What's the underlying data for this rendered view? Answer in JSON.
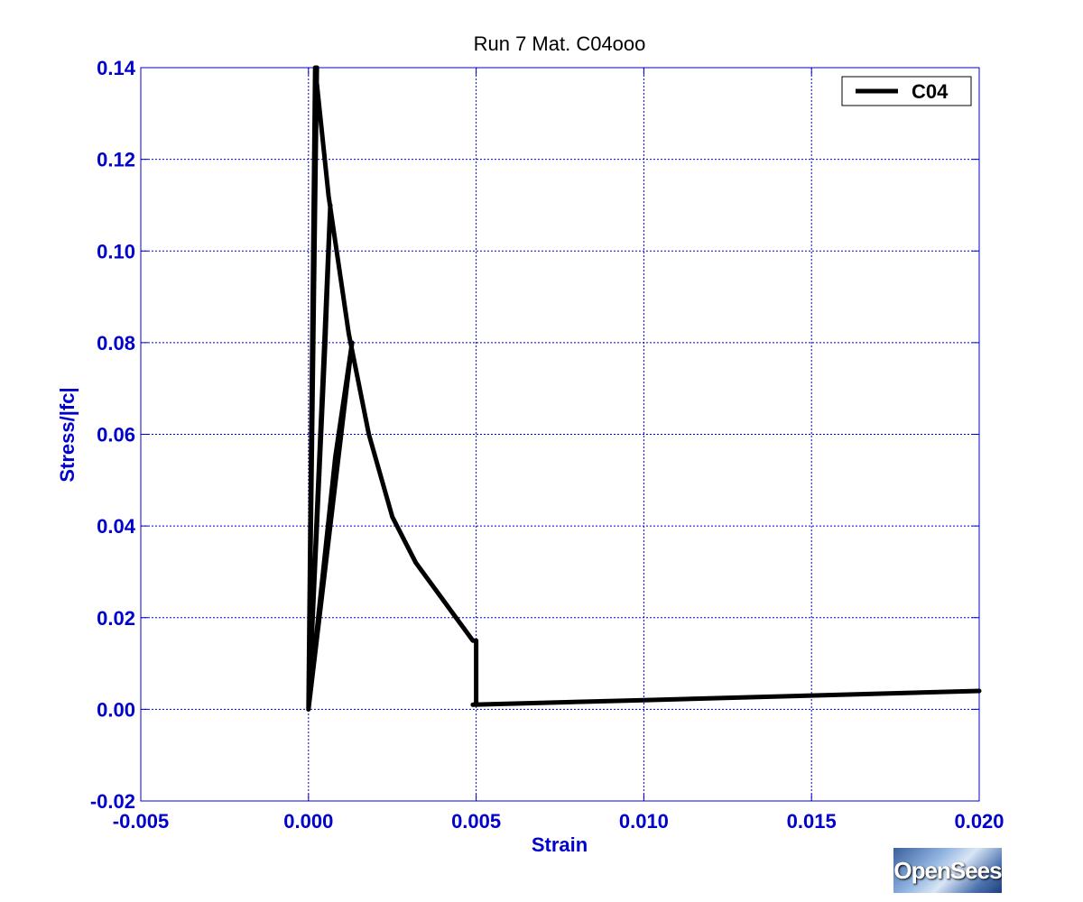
{
  "chart_data": {
    "type": "line",
    "title": "Run 7    Mat. C04ooo",
    "xlabel": "Strain",
    "ylabel": "Stress/|fc|",
    "xlim": [
      -0.005,
      0.02
    ],
    "ylim": [
      -0.02,
      0.14
    ],
    "xticks": [
      -0.005,
      0.0,
      0.005,
      0.01,
      0.015,
      0.02
    ],
    "xtick_labels": [
      "-0.005",
      "0.000",
      "0.005",
      "0.010",
      "0.015",
      "0.020"
    ],
    "yticks": [
      -0.02,
      0.0,
      0.02,
      0.04,
      0.06,
      0.08,
      0.1,
      0.12,
      0.14
    ],
    "ytick_labels": [
      "-0.02",
      "0.00",
      "0.02",
      "0.04",
      "0.06",
      "0.08",
      "0.10",
      "0.12",
      "0.14"
    ],
    "grid": true,
    "legend_position": "top-right",
    "series": [
      {
        "name": "C04",
        "color": "#000000",
        "x": [
          0.0,
          0.0002,
          0.00025,
          0.0,
          0.0005,
          0.00065,
          0.0,
          0.0008,
          0.0012,
          0.0013,
          0.0,
          0.0,
          0.0002,
          0.0006,
          0.0012,
          0.0018,
          0.0025,
          0.0032,
          0.004,
          0.0046,
          0.0049,
          0.005,
          0.005,
          0.0049,
          0.01,
          0.015,
          0.02
        ],
        "y": [
          0.0,
          0.137,
          0.14,
          0.0,
          0.08,
          0.11,
          0.0,
          0.055,
          0.075,
          0.08,
          0.0,
          0.0,
          0.14,
          0.112,
          0.082,
          0.06,
          0.042,
          0.032,
          0.024,
          0.018,
          0.015,
          0.015,
          0.001,
          0.001,
          0.002,
          0.003,
          0.004
        ]
      }
    ]
  },
  "logo": {
    "text": "OpenSees"
  }
}
